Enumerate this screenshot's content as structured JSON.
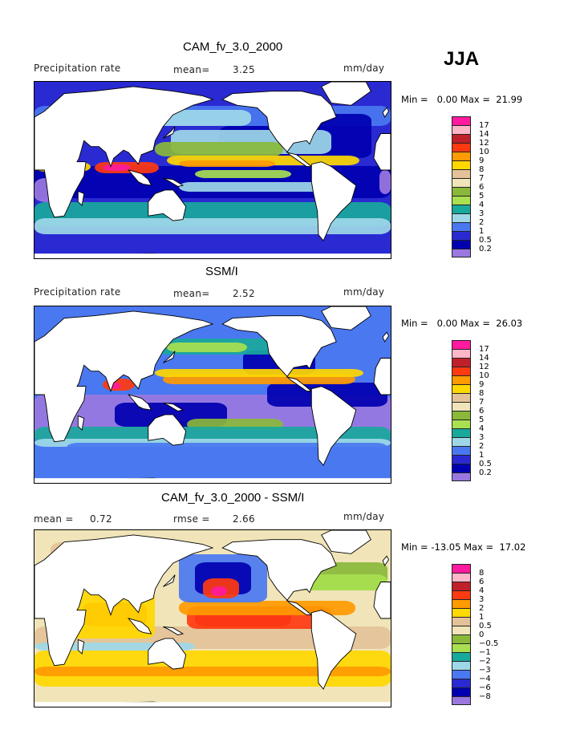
{
  "season": "JJA",
  "panels": [
    {
      "title": "CAM_fv_3.0_2000",
      "left_label": "Precipitation rate",
      "stat_label": "mean=",
      "stat_value": "3.25",
      "units": "mm/day",
      "minmax": "Min =   0.00 Max =  21.99",
      "legend_levels": [
        "17",
        "14",
        "12",
        "10",
        "9",
        "8",
        "7",
        "6",
        "5",
        "4",
        "3",
        "2",
        "1",
        "0.5",
        "0.2"
      ],
      "legend_colors": [
        "#ff1aa0",
        "#ffb6c8",
        "#c0202a",
        "#ff3a10",
        "#ff9a00",
        "#ffd800",
        "#e4c298",
        "#f0e4b8",
        "#8ab83a",
        "#a8e050",
        "#19a89c",
        "#9ed8e8",
        "#4a78f0",
        "#2a2ad2",
        "#0000b0",
        "#9a78e0"
      ],
      "field": {
        "background": "#2a2ad2",
        "bands": [
          {
            "lat": -50,
            "val": 4,
            "cover": 0.9
          },
          {
            "lat": -35,
            "val": 1,
            "cover": 0.7
          },
          {
            "lat": 8,
            "val": 10,
            "cover": 0.6
          },
          {
            "lat": 0,
            "val": 6,
            "cover": 0.8
          },
          {
            "lat": 15,
            "val": 3,
            "cover": 0.7
          },
          {
            "lat": 45,
            "val": 2,
            "cover": 0.8
          }
        ]
      }
    },
    {
      "title": "SSM/I",
      "left_label": "Precipitation rate",
      "stat_label": "mean=",
      "stat_value": "2.52",
      "units": "mm/day",
      "minmax": "Min =   0.00 Max =  26.03",
      "legend_levels": [
        "17",
        "14",
        "12",
        "10",
        "9",
        "8",
        "7",
        "6",
        "5",
        "4",
        "3",
        "2",
        "1",
        "0.5",
        "0.2"
      ],
      "legend_colors": [
        "#ff1aa0",
        "#ffb6c8",
        "#c0202a",
        "#ff3a10",
        "#ff9a00",
        "#ffd800",
        "#e4c298",
        "#f0e4b8",
        "#8ab83a",
        "#a8e050",
        "#19a89c",
        "#9ed8e8",
        "#4a78f0",
        "#2a2ad2",
        "#0000b0",
        "#9a78e0"
      ],
      "field": {
        "background": "#4a78f0"
      }
    },
    {
      "title": "CAM_fv_3.0_2000 - SSM/I",
      "left_label": "mean =",
      "left_value": "0.72",
      "stat_label": "rmse =",
      "stat_value": "2.66",
      "units": "mm/day",
      "minmax": "Min = -13.05 Max =  17.02",
      "legend_levels": [
        "8",
        "6",
        "4",
        "3",
        "2",
        "1",
        "0.5",
        "0",
        "-0.5",
        "-1",
        "-2",
        "-3",
        "-4",
        "-6",
        "-8"
      ],
      "legend_colors": [
        "#ff1aa0",
        "#ffb6c8",
        "#c0202a",
        "#ff3a10",
        "#ff9a00",
        "#ffd800",
        "#e4c298",
        "#f0e4b8",
        "#8ab83a",
        "#a8e050",
        "#19a89c",
        "#9ed8e8",
        "#4a78f0",
        "#2a2ad2",
        "#0000b0",
        "#9a78e0"
      ],
      "field": {
        "background": "#f0e4b8"
      }
    }
  ]
}
